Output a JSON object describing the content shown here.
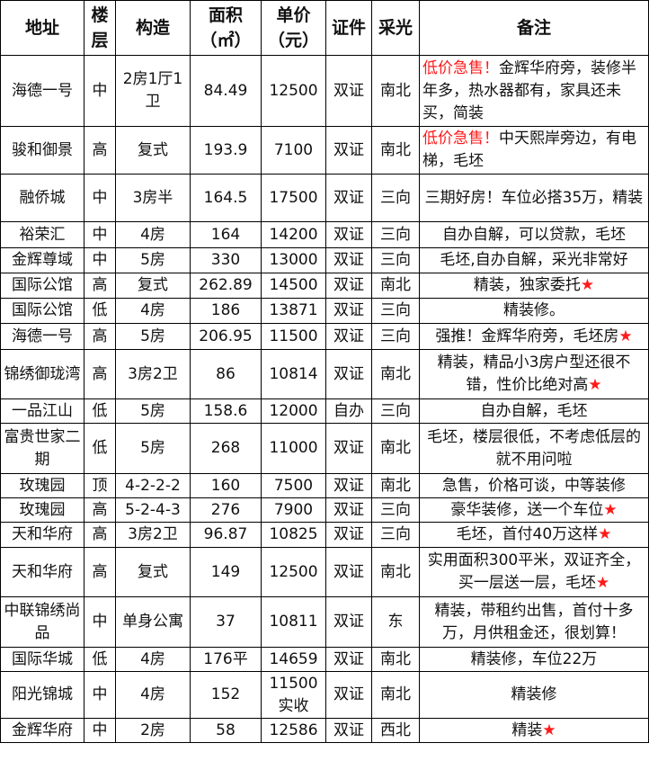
{
  "headers": [
    "地址",
    "楼层",
    "构造",
    "面积（㎡）",
    "单价（元）",
    "证件",
    "采光",
    "备注"
  ],
  "rows": [
    {
      "addr": "海德一号",
      "floor": "中",
      "layout": "2房1厅1卫",
      "area": "84.49",
      "price": "12500",
      "cert": "双证",
      "light": "南北",
      "remark": {
        "red": "低价急售！",
        "text": "金辉华府旁，装修半年多，热水器都有，家具还未买，简装",
        "star": ""
      },
      "h": 80
    },
    {
      "addr": "骏和御景",
      "floor": "高",
      "layout": "复式",
      "area": "193.9",
      "price": "7100",
      "cert": "双证",
      "light": "南北",
      "remark": {
        "red": "低价急售！",
        "text": "中天熙岸旁边，有电梯，毛坯",
        "star": ""
      },
      "h": 54
    },
    {
      "addr": "融侨城",
      "floor": "中",
      "layout": "3房半",
      "area": "164.5",
      "price": "17500",
      "cert": "双证",
      "light": "三向",
      "remark": {
        "red": "",
        "text": "三期好房！车位必搭35万，精装",
        "star": ""
      },
      "h": 54
    },
    {
      "addr": "裕荣汇",
      "floor": "中",
      "layout": "4房",
      "area": "164",
      "price": "14200",
      "cert": "双证",
      "light": "三向",
      "remark": {
        "red": "",
        "text": "自办自解，可以贷款，毛坯",
        "star": ""
      },
      "h": 30
    },
    {
      "addr": "金辉尊域",
      "floor": "中",
      "layout": "5房",
      "area": "330",
      "price": "13000",
      "cert": "双证",
      "light": "三向",
      "remark": {
        "red": "",
        "text": "毛坯,自办自解，采光非常好",
        "star": ""
      },
      "h": 29
    },
    {
      "addr": "国际公馆",
      "floor": "高",
      "layout": "复式",
      "area": "262.89",
      "price": "14500",
      "cert": "双证",
      "light": "南北",
      "remark": {
        "red": "",
        "text": "精装，独家委托",
        "star": "★"
      },
      "h": 29
    },
    {
      "addr": "国际公馆",
      "floor": "低",
      "layout": "4房",
      "area": "186",
      "price": "13871",
      "cert": "双证",
      "light": "三向",
      "remark": {
        "red": "",
        "text": "精装修。",
        "star": ""
      },
      "h": 29
    },
    {
      "addr": "海德一号",
      "floor": "高",
      "layout": "5房",
      "area": "206.95",
      "price": "11500",
      "cert": "双证",
      "light": "三向",
      "remark": {
        "red": "",
        "text": "强推！金辉华府旁，毛坯房",
        "star": "★"
      },
      "h": 30
    },
    {
      "addr": "锦绣御珑湾",
      "floor": "高",
      "layout": "3房2卫",
      "area": "86",
      "price": "10814",
      "cert": "双证",
      "light": "南北",
      "remark": {
        "red": "",
        "text": "精装，精品小3房户型还很不错，性价比绝对高",
        "star": "★"
      },
      "h": 56
    },
    {
      "addr": "一品江山",
      "floor": "低",
      "layout": "5房",
      "area": "158.6",
      "price": "12000",
      "cert": "自办",
      "light": "三向",
      "remark": {
        "red": "",
        "text": "自办自解，毛坯",
        "star": ""
      },
      "h": 28
    },
    {
      "addr": "富贵世家二期",
      "floor": "低",
      "layout": "5房",
      "area": "268",
      "price": "11000",
      "cert": "双证",
      "light": "南北",
      "remark": {
        "red": "",
        "text": "毛坯，楼层很低，不考虑低层的就不用问啦",
        "star": ""
      },
      "h": 57
    },
    {
      "addr": "玫瑰园",
      "floor": "顶",
      "layout": "4-2-2-2",
      "area": "160",
      "price": "7500",
      "cert": "双证",
      "light": "南北",
      "remark": {
        "red": "",
        "text": "急售，价格可谈，中等装修",
        "star": ""
      },
      "h": 28
    },
    {
      "addr": "玫瑰园",
      "floor": "高",
      "layout": "5-2-4-3",
      "area": "276",
      "price": "7900",
      "cert": "双证",
      "light": "三向",
      "remark": {
        "red": "",
        "text": "豪华装修，送一个车位",
        "star": "★"
      },
      "h": 28
    },
    {
      "addr": "天和华府",
      "floor": "高",
      "layout": "3房2卫",
      "area": "96.87",
      "price": "10825",
      "cert": "双证",
      "light": "三向",
      "remark": {
        "red": "",
        "text": "毛坯，首付40万这样",
        "star": "★"
      },
      "h": 29
    },
    {
      "addr": "天和华府",
      "floor": "高",
      "layout": "复式",
      "area": "149",
      "price": "12500",
      "cert": "双证",
      "light": "南北",
      "remark": {
        "red": "",
        "text": "实用面积300平米，双证齐全，买一层送一层，毛坯",
        "star": "★"
      },
      "h": 56
    },
    {
      "addr": "中联锦绣尚品",
      "floor": "中",
      "layout": "单身公寓",
      "area": "37",
      "price": "10811",
      "cert": "双证",
      "light": "东",
      "remark": {
        "red": "",
        "text": "精装，带租约出售，首付十多万，月供租金还，很划算！",
        "star": ""
      },
      "h": 57
    },
    {
      "addr": "国际华城",
      "floor": "低",
      "layout": "4房",
      "area": "176平",
      "price": "14659",
      "cert": "双证",
      "light": "南北",
      "remark": {
        "red": "",
        "text": "精装修，车位22万",
        "star": ""
      },
      "h": 28
    },
    {
      "addr": "阳光锦城",
      "floor": "中",
      "layout": "4房",
      "area": "152",
      "price": "11500实收",
      "cert": "双证",
      "light": "南北",
      "remark": {
        "red": "",
        "text": "精装修",
        "star": ""
      },
      "h": 53
    },
    {
      "addr": "金辉华府",
      "floor": "中",
      "layout": "2房",
      "area": "58",
      "price": "12586",
      "cert": "双证",
      "light": "西北",
      "remark": {
        "red": "",
        "text": "精装",
        "star": "★"
      },
      "h": 28
    }
  ],
  "colors": {
    "highlight": "#ff1a1a",
    "border": "#000000"
  }
}
